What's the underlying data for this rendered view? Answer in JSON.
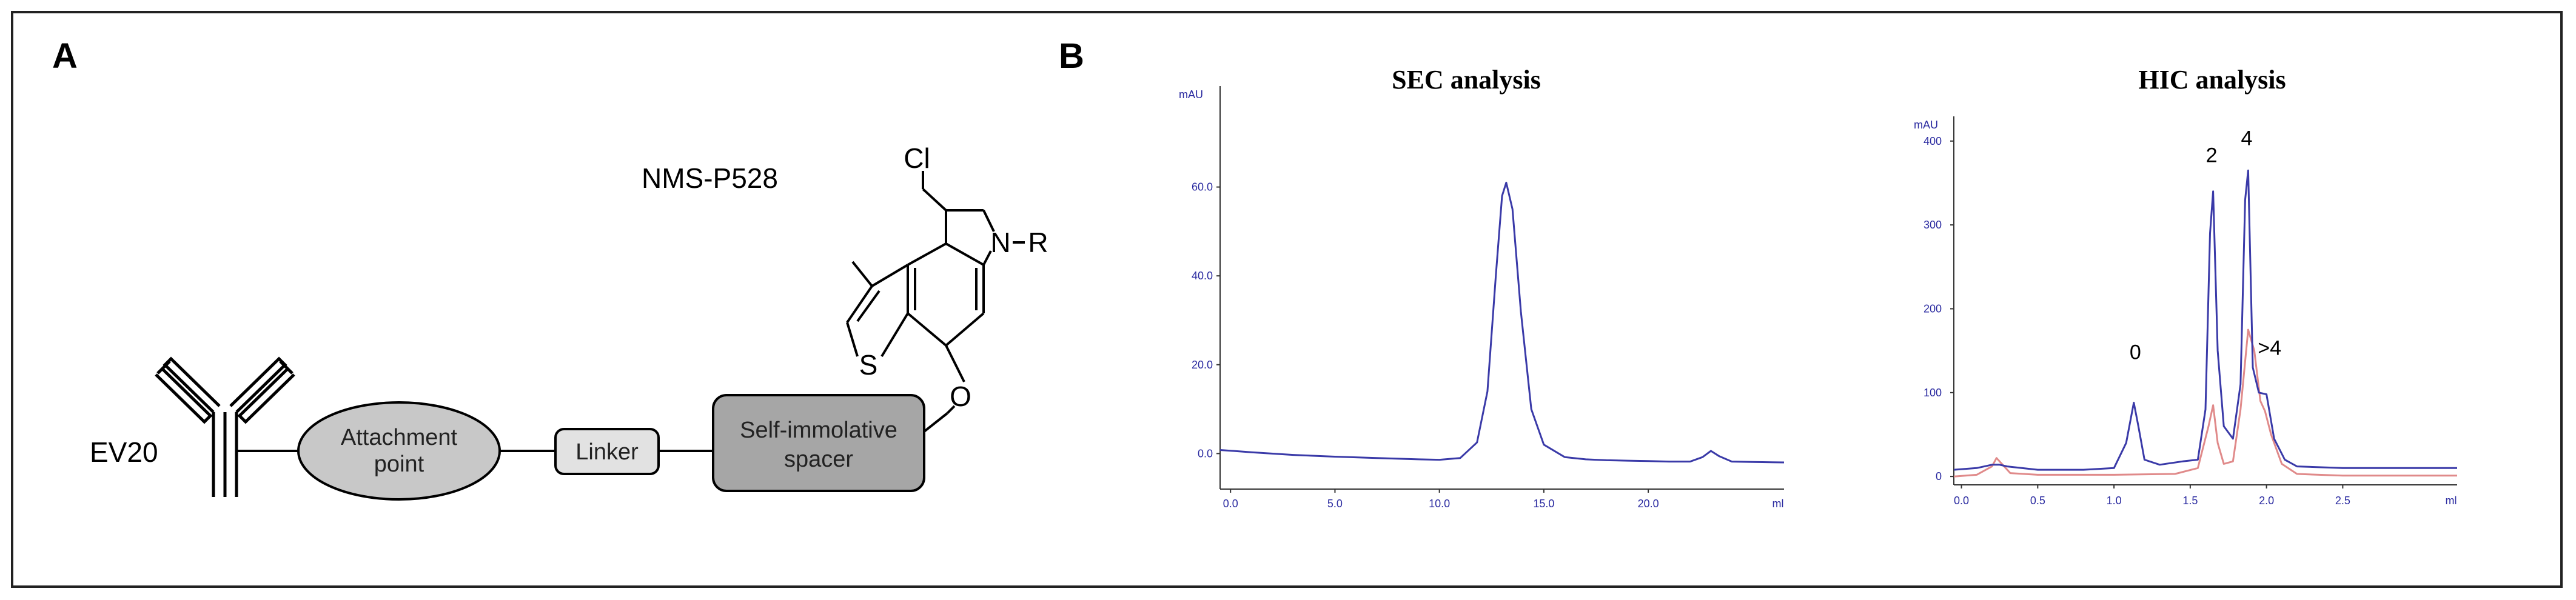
{
  "panels": {
    "a_label": "A",
    "b_label": "B"
  },
  "schematic": {
    "antibody_label": "EV20",
    "attachment_line1": "Attachment",
    "attachment_line2": "point",
    "linker": "Linker",
    "spacer_line1": "Self-immolative",
    "spacer_line2": "spacer",
    "payload_name": "NMS-P528",
    "atoms": {
      "cl": "Cl",
      "n": "N",
      "r": "R",
      "s": "S",
      "o": "O"
    }
  },
  "chart_data": [
    {
      "type": "line",
      "title": "SEC analysis",
      "ylabel": "mAU",
      "xunit": "ml",
      "xlim": [
        -0.5,
        26.5
      ],
      "ylim": [
        -8,
        80
      ],
      "xticks": [
        "0.0",
        "5.0",
        "10.0",
        "15.0",
        "20.0"
      ],
      "yticks": [
        "0.0",
        "20.0",
        "40.0",
        "60.0"
      ],
      "series": [
        {
          "color": "#3a3aa8",
          "x": [
            -0.5,
            1,
            3,
            5,
            7,
            9,
            10,
            11,
            11.8,
            12.3,
            12.7,
            13.0,
            13.2,
            13.5,
            13.9,
            14.4,
            15,
            16,
            17,
            18,
            19,
            20,
            21,
            22,
            22.6,
            23.0,
            23.4,
            24,
            25,
            26.5
          ],
          "y": [
            0.8,
            0.3,
            -0.3,
            -0.7,
            -1.0,
            -1.3,
            -1.4,
            -1.0,
            2.5,
            14,
            40,
            58,
            61,
            55,
            32,
            10,
            2,
            -0.8,
            -1.3,
            -1.5,
            -1.6,
            -1.7,
            -1.8,
            -1.8,
            -0.8,
            0.6,
            -0.6,
            -1.8,
            -1.9,
            -2.0
          ]
        }
      ]
    },
    {
      "type": "line",
      "title": "HIC analysis",
      "ylabel": "mAU",
      "xunit": "ml",
      "xlim": [
        -0.05,
        3.25
      ],
      "ylim": [
        -10,
        415
      ],
      "xticks": [
        "0.0",
        "0.5",
        "1.0",
        "1.5",
        "2.0",
        "2.5"
      ],
      "yticks": [
        "0",
        "100",
        "200",
        "300",
        "400"
      ],
      "peak_labels": [
        "0",
        "2",
        "4",
        ">4"
      ],
      "series": [
        {
          "color": "#3a3aa8",
          "x": [
            -0.05,
            0.1,
            0.2,
            0.25,
            0.3,
            0.5,
            0.8,
            1.0,
            1.08,
            1.13,
            1.16,
            1.2,
            1.3,
            1.45,
            1.55,
            1.6,
            1.63,
            1.65,
            1.68,
            1.72,
            1.78,
            1.83,
            1.86,
            1.88,
            1.91,
            1.95,
            2.0,
            2.05,
            2.12,
            2.2,
            2.5,
            3.25
          ],
          "y": [
            8,
            10,
            14,
            14,
            12,
            8,
            8,
            10,
            40,
            88,
            60,
            20,
            14,
            18,
            20,
            80,
            290,
            340,
            150,
            60,
            45,
            110,
            330,
            365,
            130,
            100,
            98,
            45,
            20,
            12,
            10,
            10
          ]
        },
        {
          "color": "#e08a8a",
          "x": [
            -0.05,
            0.1,
            0.2,
            0.23,
            0.27,
            0.32,
            0.5,
            1.0,
            1.4,
            1.55,
            1.62,
            1.65,
            1.68,
            1.72,
            1.78,
            1.83,
            1.88,
            1.92,
            1.96,
            1.99,
            2.03,
            2.1,
            2.2,
            2.5,
            3.25
          ],
          "y": [
            0,
            2,
            12,
            22,
            14,
            4,
            2,
            2,
            3,
            10,
            60,
            85,
            40,
            15,
            18,
            80,
            175,
            150,
            90,
            78,
            50,
            15,
            3,
            1,
            1
          ]
        }
      ]
    }
  ]
}
